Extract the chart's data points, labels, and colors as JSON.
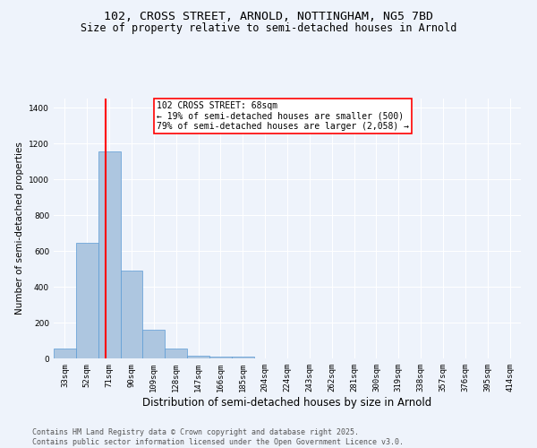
{
  "title_line1": "102, CROSS STREET, ARNOLD, NOTTINGHAM, NG5 7BD",
  "title_line2": "Size of property relative to semi-detached houses in Arnold",
  "xlabel": "Distribution of semi-detached houses by size in Arnold",
  "ylabel": "Number of semi-detached properties",
  "bar_labels": [
    "33sqm",
    "52sqm",
    "71sqm",
    "90sqm",
    "109sqm",
    "128sqm",
    "147sqm",
    "166sqm",
    "185sqm",
    "204sqm",
    "224sqm",
    "243sqm",
    "262sqm",
    "281sqm",
    "300sqm",
    "319sqm",
    "338sqm",
    "357sqm",
    "376sqm",
    "395sqm",
    "414sqm"
  ],
  "bar_values": [
    55,
    645,
    1155,
    490,
    160,
    55,
    15,
    12,
    8,
    0,
    0,
    0,
    0,
    0,
    0,
    0,
    0,
    0,
    0,
    0,
    0
  ],
  "bar_color": "#adc6e0",
  "bar_edgecolor": "#5b9bd5",
  "background_color": "#eef3fb",
  "grid_color": "#ffffff",
  "vline_color": "red",
  "annotation_title": "102 CROSS STREET: 68sqm",
  "annotation_line1": "← 19% of semi-detached houses are smaller (500)",
  "annotation_line2": "79% of semi-detached houses are larger (2,058) →",
  "annotation_box_color": "white",
  "annotation_box_edgecolor": "red",
  "ylim": [
    0,
    1450
  ],
  "yticks": [
    0,
    200,
    400,
    600,
    800,
    1000,
    1200,
    1400
  ],
  "footnote": "Contains HM Land Registry data © Crown copyright and database right 2025.\nContains public sector information licensed under the Open Government Licence v3.0.",
  "title_fontsize": 9.5,
  "subtitle_fontsize": 8.5,
  "xlabel_fontsize": 8.5,
  "ylabel_fontsize": 7.5,
  "tick_fontsize": 6.5,
  "annotation_fontsize": 7.0,
  "footnote_fontsize": 6.0
}
